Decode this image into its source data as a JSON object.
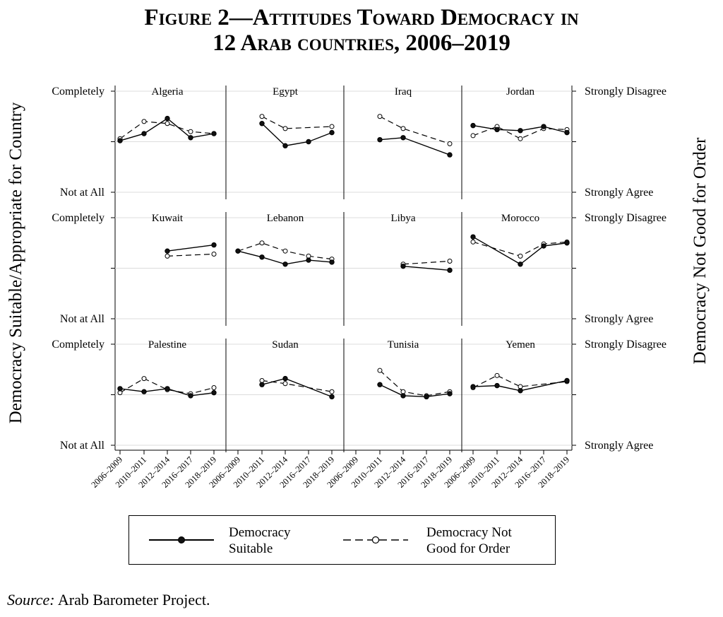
{
  "title_line1": "Figure 2—Attitudes Toward Democracy in",
  "title_line2": "12 Arab countries, 2006–2019",
  "source_label": "Source:",
  "source_text": "Arab Barometer Project.",
  "chart_data": {
    "type": "line",
    "categories": [
      "2006–2009",
      "2010–2011",
      "2012–2014",
      "2016–2017",
      "2018–2019"
    ],
    "ylabel_left": "Democracy Suitable/Appropriate for Country",
    "ylabel_right": "Democracy Not Good for Order",
    "left_ticks": {
      "top": "Completely",
      "bottom": "Not at All"
    },
    "right_ticks": {
      "top": "Strongly Disagree",
      "bottom": "Strongly Agree"
    },
    "ylim": [
      0,
      1
    ],
    "grid": true,
    "legend": {
      "position": "bottom",
      "entries": [
        {
          "line1": "Democracy",
          "line2": "Suitable",
          "style": "solid-filled"
        },
        {
          "line1": "Democracy Not",
          "line2": "Good for Order",
          "style": "dashed-hollow"
        }
      ]
    },
    "panels": [
      {
        "name": "Algeria",
        "suitable": [
          0.51,
          0.58,
          0.73,
          0.54,
          0.58
        ],
        "not_good": [
          0.53,
          0.7,
          0.68,
          0.6,
          0.58
        ]
      },
      {
        "name": "Egypt",
        "suitable": [
          null,
          0.68,
          0.46,
          0.5,
          0.59
        ],
        "not_good": [
          null,
          0.75,
          0.63,
          null,
          0.65
        ]
      },
      {
        "name": "Iraq",
        "suitable": [
          null,
          0.52,
          0.54,
          null,
          0.37
        ],
        "not_good": [
          null,
          0.75,
          0.63,
          null,
          0.48
        ]
      },
      {
        "name": "Jordan",
        "suitable": [
          0.66,
          0.62,
          0.61,
          0.65,
          0.59
        ],
        "not_good": [
          0.56,
          0.65,
          0.53,
          0.63,
          0.62
        ]
      },
      {
        "name": "Kuwait",
        "suitable": [
          null,
          null,
          0.67,
          null,
          0.73
        ],
        "not_good": [
          null,
          null,
          0.62,
          null,
          0.64
        ]
      },
      {
        "name": "Lebanon",
        "suitable": [
          0.67,
          0.61,
          0.54,
          0.58,
          0.56
        ],
        "not_good": [
          0.67,
          0.75,
          0.67,
          0.62,
          0.59
        ]
      },
      {
        "name": "Libya",
        "suitable": [
          null,
          null,
          0.52,
          null,
          0.48
        ],
        "not_good": [
          null,
          null,
          0.54,
          null,
          0.57
        ]
      },
      {
        "name": "Morocco",
        "suitable": [
          0.81,
          null,
          0.54,
          0.72,
          0.75
        ],
        "not_good": [
          0.76,
          null,
          0.62,
          0.74,
          0.76
        ]
      },
      {
        "name": "Palestine",
        "suitable": [
          0.56,
          0.53,
          0.56,
          0.49,
          0.52
        ],
        "not_good": [
          0.52,
          0.66,
          0.55,
          0.51,
          0.57
        ]
      },
      {
        "name": "Sudan",
        "suitable": [
          null,
          0.6,
          0.66,
          null,
          0.48
        ],
        "not_good": [
          null,
          0.64,
          0.61,
          null,
          0.53
        ]
      },
      {
        "name": "Tunisia",
        "suitable": [
          null,
          0.6,
          0.49,
          0.48,
          0.51
        ],
        "not_good": [
          null,
          0.74,
          0.53,
          0.49,
          0.53
        ]
      },
      {
        "name": "Yemen",
        "suitable": [
          0.58,
          0.59,
          0.54,
          null,
          0.64
        ],
        "not_good": [
          0.57,
          0.69,
          0.58,
          null,
          0.63
        ]
      }
    ]
  }
}
